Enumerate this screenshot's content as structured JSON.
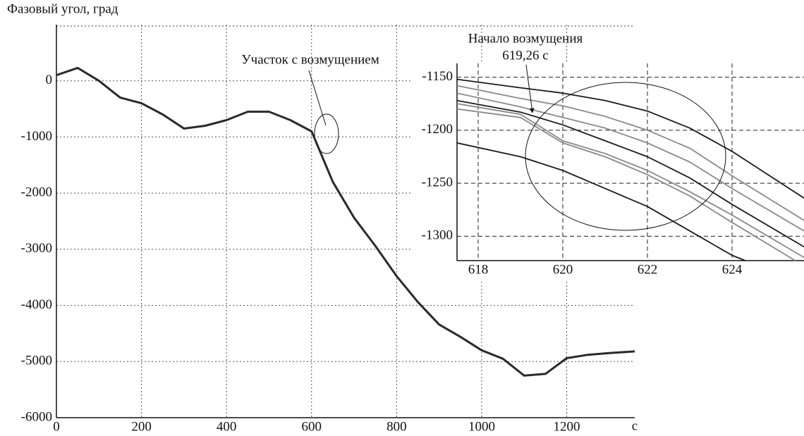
{
  "chart_data": [
    {
      "type": "line",
      "title": "Фазовый угол, град",
      "x_label": "с",
      "x": [
        0,
        50,
        100,
        150,
        200,
        250,
        300,
        350,
        400,
        450,
        500,
        550,
        600,
        650,
        700,
        750,
        800,
        850,
        900,
        950,
        1000,
        1050,
        1100,
        1150,
        1200,
        1250,
        1300,
        1360
      ],
      "values": [
        100,
        230,
        0,
        -300,
        -400,
        -600,
        -850,
        -800,
        -700,
        -550,
        -550,
        -700,
        -900,
        -1800,
        -2440,
        -2940,
        -3480,
        -3940,
        -4340,
        -4560,
        -4800,
        -4950,
        -5250,
        -5220,
        -4940,
        -4880,
        -4850,
        -4820
      ],
      "color": "#2a2a2a",
      "xlim": [
        0,
        1360
      ],
      "ylim": [
        -6000,
        1000
      ],
      "xticks": [
        0,
        200,
        400,
        600,
        800,
        1000,
        1200
      ],
      "yticks": [
        0,
        -1000,
        -2000,
        -3000,
        -4000,
        -5000,
        -6000
      ],
      "grid": true,
      "grid_style": "dotted",
      "annotations": [
        "Участок с возмущением"
      ]
    },
    {
      "type": "line",
      "x": [
        617.5,
        619,
        620,
        621,
        622,
        623,
        624,
        625.7
      ],
      "series": [
        {
          "color": "#1a1a1a",
          "values": [
            -1152,
            -1160,
            -1165,
            -1172,
            -1182,
            -1198,
            -1220,
            -1264
          ]
        },
        {
          "color": "#8a8a8a",
          "values": [
            -1158,
            -1170,
            -1177,
            -1187,
            -1200,
            -1217,
            -1243,
            -1285
          ]
        },
        {
          "color": "#8a8a8a",
          "values": [
            -1165,
            -1178,
            -1188,
            -1198,
            -1212,
            -1230,
            -1255,
            -1295
          ]
        },
        {
          "color": "#1a1a1a",
          "values": [
            -1172,
            -1183,
            -1195,
            -1210,
            -1225,
            -1245,
            -1270,
            -1310
          ]
        },
        {
          "color": "#8a8a8a",
          "values": [
            -1175,
            -1185,
            -1210,
            -1222,
            -1238,
            -1258,
            -1280,
            -1320
          ]
        },
        {
          "color": "#8a8a8a",
          "values": [
            -1180,
            -1188,
            -1212,
            -1225,
            -1242,
            -1262,
            -1287,
            -1328
          ]
        },
        {
          "color": "#1a1a1a",
          "values": [
            -1212,
            -1225,
            -1238,
            -1255,
            -1272,
            -1295,
            -1318,
            -1345
          ]
        }
      ],
      "xlim": [
        617.5,
        625.7
      ],
      "ylim": [
        -1323,
        -1137
      ],
      "xticks": [
        618,
        620,
        622,
        624
      ],
      "yticks": [
        -1150,
        -1200,
        -1250,
        -1300
      ],
      "grid": true,
      "grid_style": "dashed",
      "annotations": [
        "Начало возмущения",
        "619,26 с"
      ]
    }
  ]
}
